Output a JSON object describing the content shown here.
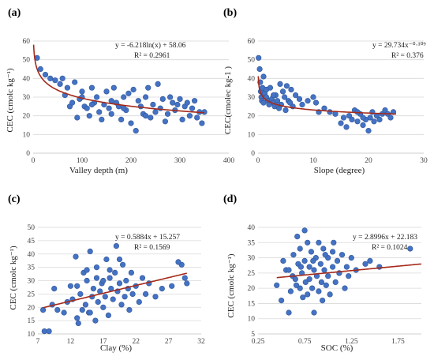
{
  "colors": {
    "points": "#4472c4",
    "trendline": "#a52a1a",
    "grid": "#d9d9d9",
    "text": "#222222"
  },
  "chart_data": [
    {
      "id": "a",
      "panel_label": "(a)",
      "type": "scatter",
      "xlabel": "Valley depth (m)",
      "ylabel": "CEC (cmolc kg⁻¹)",
      "xlim": [
        0,
        400
      ],
      "ylim": [
        0,
        60
      ],
      "xticks": [
        "0",
        "100",
        "200",
        "300",
        "400"
      ],
      "yticks": [
        "0",
        "10",
        "20",
        "30",
        "40",
        "50",
        "60"
      ],
      "grid": "horizontal",
      "legend": "none",
      "equation": "y = -6.218ln(x) + 58.06",
      "r2": "R² = 0.2961",
      "trendline": {
        "kind": "log",
        "a": -6.218,
        "b": 58.06
      },
      "points": [
        [
          8,
          51
        ],
        [
          15,
          45
        ],
        [
          25,
          42
        ],
        [
          35,
          40
        ],
        [
          45,
          39
        ],
        [
          55,
          37
        ],
        [
          60,
          40
        ],
        [
          65,
          31
        ],
        [
          70,
          35
        ],
        [
          75,
          25
        ],
        [
          80,
          27
        ],
        [
          85,
          38
        ],
        [
          90,
          19
        ],
        [
          95,
          29
        ],
        [
          100,
          30
        ],
        [
          100,
          33
        ],
        [
          105,
          25
        ],
        [
          110,
          24
        ],
        [
          115,
          20
        ],
        [
          120,
          35
        ],
        [
          125,
          27
        ],
        [
          130,
          30
        ],
        [
          135,
          22
        ],
        [
          140,
          18
        ],
        [
          145,
          26
        ],
        [
          150,
          33
        ],
        [
          155,
          24
        ],
        [
          160,
          21
        ],
        [
          165,
          35
        ],
        [
          170,
          27
        ],
        [
          175,
          25
        ],
        [
          180,
          18
        ],
        [
          185,
          30
        ],
        [
          190,
          23
        ],
        [
          195,
          32
        ],
        [
          200,
          16
        ],
        [
          205,
          34
        ],
        [
          210,
          12
        ],
        [
          215,
          28
        ],
        [
          220,
          25
        ],
        [
          225,
          21
        ],
        [
          230,
          30
        ],
        [
          235,
          35
        ],
        [
          240,
          19
        ],
        [
          245,
          26
        ],
        [
          250,
          22
        ],
        [
          255,
          37
        ],
        [
          260,
          24
        ],
        [
          265,
          29
        ],
        [
          270,
          17
        ],
        [
          275,
          21
        ],
        [
          280,
          30
        ],
        [
          285,
          27
        ],
        [
          290,
          23
        ],
        [
          295,
          26
        ],
        [
          300,
          29
        ],
        [
          305,
          18
        ],
        [
          310,
          25
        ],
        [
          315,
          27
        ],
        [
          320,
          20
        ],
        [
          325,
          24
        ],
        [
          330,
          28
        ],
        [
          335,
          19
        ],
        [
          340,
          22
        ],
        [
          345,
          16
        ],
        [
          350,
          22
        ],
        [
          230,
          20
        ],
        [
          185,
          24
        ],
        [
          160,
          28
        ],
        [
          120,
          26
        ]
      ]
    },
    {
      "id": "b",
      "panel_label": "(b)",
      "type": "scatter",
      "xlabel": "Slope (degree)",
      "ylabel": "CEC(cmolec kg-1 )",
      "xlim": [
        0,
        30
      ],
      "ylim": [
        0,
        60
      ],
      "xticks": [
        "0",
        "10",
        "20",
        "30"
      ],
      "yticks": [
        "0",
        "10",
        "20",
        "30",
        "40",
        "50",
        "60"
      ],
      "grid": "horizontal",
      "legend": "none",
      "equation": "y = 29.734x⁻⁰·¹⁰⁹",
      "r2": "R² = 0.376",
      "trendline": {
        "kind": "power",
        "a": 29.734,
        "b": -0.109
      },
      "points": [
        [
          0.1,
          51
        ],
        [
          0.3,
          45
        ],
        [
          0.4,
          38
        ],
        [
          0.5,
          33
        ],
        [
          0.6,
          30
        ],
        [
          0.7,
          28
        ],
        [
          0.8,
          35
        ],
        [
          1,
          41
        ],
        [
          1.2,
          32
        ],
        [
          1.5,
          30
        ],
        [
          1.8,
          28
        ],
        [
          2,
          26
        ],
        [
          2.2,
          35
        ],
        [
          2.5,
          29
        ],
        [
          2.8,
          27
        ],
        [
          3,
          25
        ],
        [
          3.2,
          31
        ],
        [
          3.5,
          28
        ],
        [
          3.8,
          24
        ],
        [
          4,
          37
        ],
        [
          4.2,
          26
        ],
        [
          4.5,
          33
        ],
        [
          4.8,
          30
        ],
        [
          5,
          23
        ],
        [
          5.2,
          36
        ],
        [
          5.5,
          28
        ],
        [
          6,
          34
        ],
        [
          6.3,
          25
        ],
        [
          6.8,
          31
        ],
        [
          7.5,
          29
        ],
        [
          8,
          26
        ],
        [
          9,
          28
        ],
        [
          10,
          30
        ],
        [
          10.5,
          27
        ],
        [
          11,
          22
        ],
        [
          12,
          24
        ],
        [
          13,
          22
        ],
        [
          14,
          21
        ],
        [
          15,
          16
        ],
        [
          15.5,
          19
        ],
        [
          16,
          14
        ],
        [
          16.5,
          20
        ],
        [
          17,
          18
        ],
        [
          17.5,
          23
        ],
        [
          18,
          17
        ],
        [
          18.5,
          21
        ],
        [
          19,
          15
        ],
        [
          19.5,
          18
        ],
        [
          20,
          12
        ],
        [
          20.3,
          19
        ],
        [
          20.7,
          22
        ],
        [
          21,
          17
        ],
        [
          21.5,
          20
        ],
        [
          22,
          18
        ],
        [
          22.5,
          21
        ],
        [
          23,
          23
        ],
        [
          23.5,
          21
        ],
        [
          24,
          19
        ],
        [
          24.5,
          22
        ],
        [
          1,
          27
        ],
        [
          1.5,
          34
        ],
        [
          2.8,
          31
        ],
        [
          3.5,
          26
        ],
        [
          5.8,
          27
        ],
        [
          18,
          22
        ],
        [
          19,
          19
        ]
      ]
    },
    {
      "id": "c",
      "panel_label": "(c)",
      "type": "scatter",
      "xlabel": "Clay (%)",
      "ylabel": "CEC (cmolc kg⁻¹)",
      "xlim": [
        7,
        32
      ],
      "ylim": [
        10,
        50
      ],
      "xticks": [
        "7",
        "12",
        "17",
        "22",
        "27",
        "32"
      ],
      "yticks": [
        "10",
        "15",
        "20",
        "25",
        "30",
        "35",
        "40",
        "45",
        "50"
      ],
      "grid": "horizontal",
      "legend": "none",
      "equation": "y = 0.5884x + 15.257",
      "r2": "R² = 0.1569",
      "trendline": {
        "kind": "linear",
        "m": 0.5884,
        "c": 15.257
      },
      "points": [
        [
          7.8,
          19
        ],
        [
          8,
          11
        ],
        [
          8.7,
          11
        ],
        [
          9.2,
          21
        ],
        [
          9.5,
          27
        ],
        [
          10,
          19
        ],
        [
          11,
          18
        ],
        [
          11.5,
          22
        ],
        [
          12,
          28
        ],
        [
          12.3,
          23
        ],
        [
          12.8,
          39
        ],
        [
          13,
          16
        ],
        [
          13.2,
          14
        ],
        [
          13.5,
          25
        ],
        [
          13.8,
          19
        ],
        [
          14,
          33
        ],
        [
          14.3,
          21
        ],
        [
          14.5,
          30
        ],
        [
          14.8,
          18
        ],
        [
          15,
          41
        ],
        [
          15.3,
          24
        ],
        [
          15.5,
          27
        ],
        [
          15.8,
          15
        ],
        [
          16,
          35
        ],
        [
          16.2,
          22
        ],
        [
          16.5,
          26
        ],
        [
          16.8,
          29
        ],
        [
          17,
          20
        ],
        [
          17.3,
          24
        ],
        [
          17.5,
          38
        ],
        [
          17.8,
          17
        ],
        [
          18,
          31
        ],
        [
          18.2,
          27
        ],
        [
          18.5,
          23
        ],
        [
          18.8,
          33
        ],
        [
          19,
          43
        ],
        [
          19.2,
          26
        ],
        [
          19.5,
          29
        ],
        [
          19.8,
          21
        ],
        [
          20,
          36
        ],
        [
          20.3,
          24
        ],
        [
          20.5,
          30
        ],
        [
          20.8,
          27
        ],
        [
          21,
          19
        ],
        [
          21.3,
          33
        ],
        [
          21.5,
          25
        ],
        [
          22,
          28
        ],
        [
          22.5,
          22
        ],
        [
          23,
          31
        ],
        [
          23.5,
          25
        ],
        [
          24,
          29
        ],
        [
          25,
          24
        ],
        [
          26,
          27
        ],
        [
          27.5,
          28
        ],
        [
          29,
          36
        ],
        [
          29.5,
          31
        ],
        [
          29.8,
          29
        ],
        [
          28.5,
          37
        ],
        [
          16,
          31
        ],
        [
          18,
          34
        ],
        [
          14.5,
          34
        ],
        [
          17,
          30
        ],
        [
          19.5,
          38
        ],
        [
          15,
          18
        ],
        [
          13,
          28
        ]
      ]
    },
    {
      "id": "d",
      "panel_label": "(d)",
      "type": "scatter",
      "xlabel": "SOC (%)",
      "ylabel": "CEC (cmolc kg⁻¹)",
      "xlim": [
        0.25,
        2.0
      ],
      "ylim": [
        5,
        40
      ],
      "xticks": [
        "0.25",
        "0.75",
        "1.25",
        "1.75"
      ],
      "xtick_values": [
        0.25,
        0.75,
        1.25,
        1.75
      ],
      "yticks": [
        "5",
        "10",
        "15",
        "20",
        "25",
        "30",
        "35",
        "40"
      ],
      "grid": "horizontal",
      "legend": "none",
      "equation": "y = 2.8996x + 22.183",
      "r2": "R² = 0.1024",
      "trendline": {
        "kind": "linear",
        "m": 2.8996,
        "c": 22.183
      },
      "points": [
        [
          0.45,
          21
        ],
        [
          0.5,
          16
        ],
        [
          0.52,
          29
        ],
        [
          0.55,
          26
        ],
        [
          0.58,
          12
        ],
        [
          0.6,
          19
        ],
        [
          0.62,
          24
        ],
        [
          0.63,
          31
        ],
        [
          0.65,
          23
        ],
        [
          0.67,
          37
        ],
        [
          0.68,
          28
        ],
        [
          0.7,
          20
        ],
        [
          0.7,
          33
        ],
        [
          0.72,
          25
        ],
        [
          0.73,
          17
        ],
        [
          0.75,
          29
        ],
        [
          0.75,
          39
        ],
        [
          0.76,
          22
        ],
        [
          0.78,
          35
        ],
        [
          0.78,
          18
        ],
        [
          0.8,
          27
        ],
        [
          0.8,
          23
        ],
        [
          0.82,
          32
        ],
        [
          0.83,
          20
        ],
        [
          0.85,
          26
        ],
        [
          0.85,
          12
        ],
        [
          0.87,
          30
        ],
        [
          0.88,
          24
        ],
        [
          0.9,
          35
        ],
        [
          0.9,
          19
        ],
        [
          0.92,
          28
        ],
        [
          0.93,
          22
        ],
        [
          0.95,
          33
        ],
        [
          0.96,
          26
        ],
        [
          0.98,
          21
        ],
        [
          1.0,
          30
        ],
        [
          1.0,
          24
        ],
        [
          1.02,
          18
        ],
        [
          1.05,
          27
        ],
        [
          1.05,
          32
        ],
        [
          1.08,
          22
        ],
        [
          1.1,
          29
        ],
        [
          1.12,
          25
        ],
        [
          1.15,
          31
        ],
        [
          1.18,
          20
        ],
        [
          1.2,
          27
        ],
        [
          1.22,
          24
        ],
        [
          1.25,
          30
        ],
        [
          1.3,
          26
        ],
        [
          1.4,
          28
        ],
        [
          1.45,
          29
        ],
        [
          1.55,
          27
        ],
        [
          1.88,
          33
        ],
        [
          0.66,
          21
        ],
        [
          0.84,
          29
        ],
        [
          0.94,
          16
        ],
        [
          1.06,
          35
        ],
        [
          0.58,
          26
        ],
        [
          0.97,
          31
        ],
        [
          0.71,
          27
        ]
      ]
    }
  ]
}
